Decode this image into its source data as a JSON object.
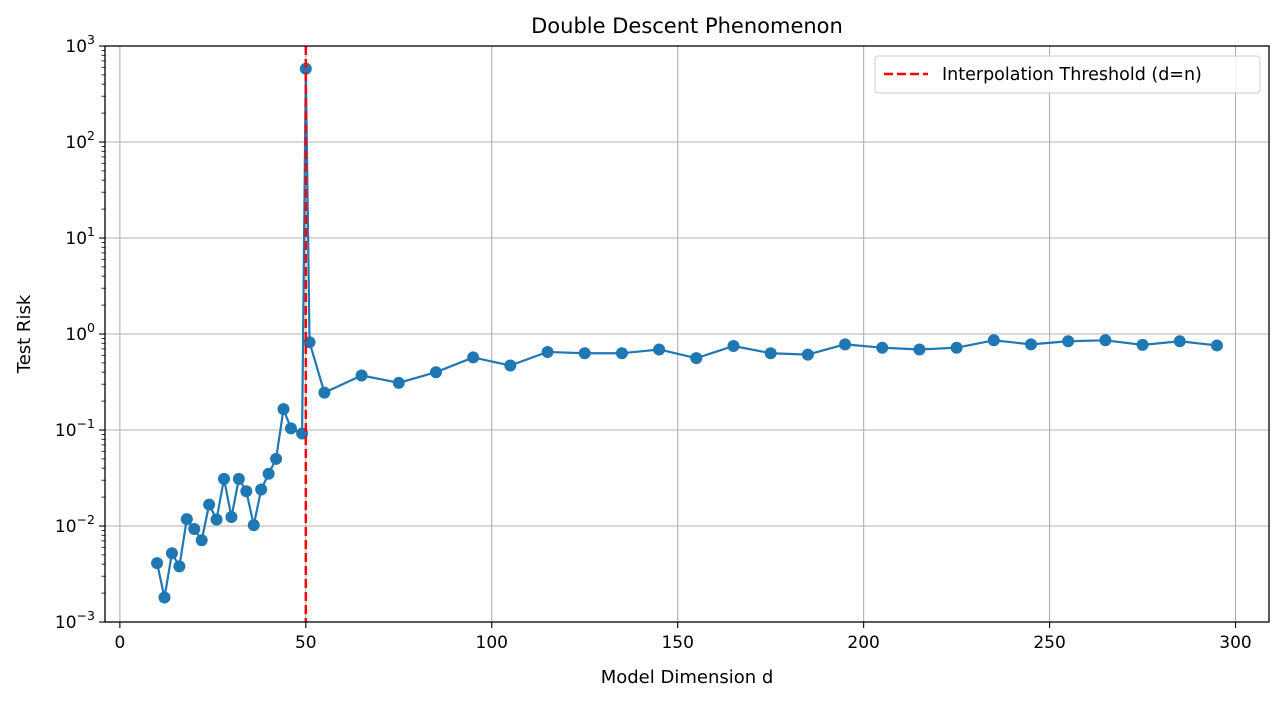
{
  "chart_data": {
    "type": "line",
    "title": "Double Descent Phenomenon",
    "xlabel": "Model Dimension d",
    "ylabel": "Test Risk",
    "xlim": [
      -4,
      309
    ],
    "ylim": [
      0.001,
      1000
    ],
    "yscale": "log",
    "grid": true,
    "legend": {
      "placement": "top-right",
      "entries": [
        "Interpolation Threshold (d=n)"
      ]
    },
    "x_ticks": [
      "0",
      "50",
      "100",
      "150",
      "200",
      "250",
      "300"
    ],
    "x_tick_values": [
      0,
      50,
      100,
      150,
      200,
      250,
      300
    ],
    "y_ticks": [
      {
        "base": "10",
        "exp": "−3",
        "value": 0.001
      },
      {
        "base": "10",
        "exp": "−2",
        "value": 0.01
      },
      {
        "base": "10",
        "exp": "−1",
        "value": 0.1
      },
      {
        "base": "10",
        "exp": "0",
        "value": 1
      },
      {
        "base": "10",
        "exp": "1",
        "value": 10
      },
      {
        "base": "10",
        "exp": "2",
        "value": 100
      },
      {
        "base": "10",
        "exp": "3",
        "value": 1000
      }
    ],
    "threshold": {
      "x": 50,
      "label": "Interpolation Threshold (d=n)",
      "color": "#ff0000"
    },
    "series": [
      {
        "color": "#1f77b4",
        "x": [
          10,
          12,
          14,
          16,
          18,
          20,
          22,
          24,
          26,
          28,
          30,
          32,
          34,
          36,
          38,
          40,
          42,
          44,
          46,
          49,
          50,
          51,
          55,
          65,
          75,
          85,
          95,
          105,
          115,
          125,
          135,
          145,
          155,
          165,
          175,
          185,
          195,
          205,
          215,
          225,
          235,
          245,
          255,
          265,
          275,
          285,
          295
        ],
        "y": [
          0.0041,
          0.0018,
          0.0052,
          0.0038,
          0.0118,
          0.0093,
          0.0071,
          0.0167,
          0.0117,
          0.031,
          0.0124,
          0.031,
          0.023,
          0.0102,
          0.024,
          0.035,
          0.05,
          0.165,
          0.104,
          0.092,
          580,
          0.82,
          0.245,
          0.37,
          0.31,
          0.4,
          0.57,
          0.47,
          0.65,
          0.63,
          0.63,
          0.69,
          0.56,
          0.75,
          0.63,
          0.61,
          0.78,
          0.72,
          0.69,
          0.72,
          0.86,
          0.78,
          0.84,
          0.86,
          0.77,
          0.84,
          0.76
        ]
      }
    ]
  }
}
